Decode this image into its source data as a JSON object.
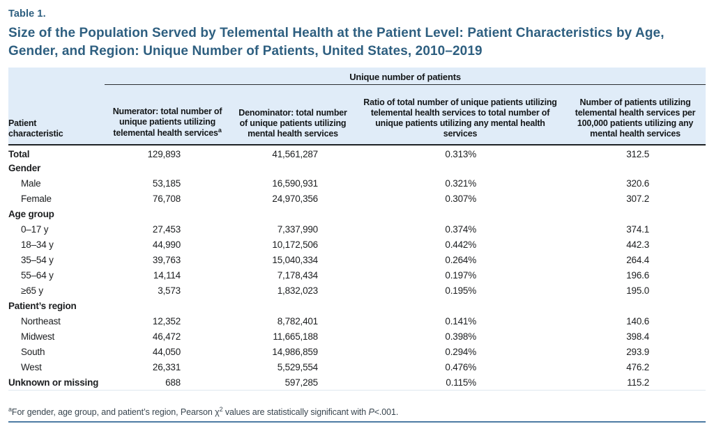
{
  "page": {
    "table_label": "Table 1.",
    "title": "Size of the Population Served by Telemental Health at the Patient Level: Patient Characteristics by Age, Gender, and Region: Unique Number of Patients, United States, 2010–2019"
  },
  "table": {
    "spanner": "Unique number of patients",
    "columns": {
      "c1": "Patient characteristic",
      "c2": {
        "text": "Numerator: total number of unique patients utilizing telemental health services",
        "sup": "a"
      },
      "c3": "Denominator: total number of unique patients utilizing mental health services",
      "c4": "Ratio of total number of unique patients utilizing telemental health services to total number of unique patients utilizing any mental health services",
      "c5": "Number of patients utilizing telemental health services per 100,000 patients utilizing any mental health services"
    },
    "rows": [
      {
        "label": "Total",
        "style": "bold",
        "values": [
          "129,893",
          "41,561,287",
          "0.313%",
          "312.5"
        ]
      },
      {
        "label": "Gender",
        "style": "bold",
        "values": [
          "",
          "",
          "",
          ""
        ]
      },
      {
        "label": "Male",
        "style": "indent",
        "values": [
          "53,185",
          "16,590,931",
          "0.321%",
          "320.6"
        ]
      },
      {
        "label": "Female",
        "style": "indent",
        "values": [
          "76,708",
          "24,970,356",
          "0.307%",
          "307.2"
        ]
      },
      {
        "label": "Age group",
        "style": "bold",
        "values": [
          "",
          "",
          "",
          ""
        ]
      },
      {
        "label": "0–17 y",
        "style": "indent",
        "values": [
          "27,453",
          "7,337,990",
          "0.374%",
          "374.1"
        ]
      },
      {
        "label": "18–34 y",
        "style": "indent",
        "values": [
          "44,990",
          "10,172,506",
          "0.442%",
          "442.3"
        ]
      },
      {
        "label": "35–54 y",
        "style": "indent",
        "values": [
          "39,763",
          "15,040,334",
          "0.264%",
          "264.4"
        ]
      },
      {
        "label": "55–64 y",
        "style": "indent",
        "values": [
          "14,114",
          "7,178,434",
          "0.197%",
          "196.6"
        ]
      },
      {
        "label": "≥65 y",
        "style": "indent",
        "values": [
          "3,573",
          "1,832,023",
          "0.195%",
          "195.0"
        ]
      },
      {
        "label": "Patient’s region",
        "style": "bold",
        "values": [
          "",
          "",
          "",
          ""
        ]
      },
      {
        "label": "Northeast",
        "style": "indent",
        "values": [
          "12,352",
          "8,782,401",
          "0.141%",
          "140.6"
        ]
      },
      {
        "label": "Midwest",
        "style": "indent",
        "values": [
          "46,472",
          "11,665,188",
          "0.398%",
          "398.4"
        ]
      },
      {
        "label": "South",
        "style": "indent",
        "values": [
          "44,050",
          "14,986,859",
          "0.294%",
          "293.9"
        ]
      },
      {
        "label": "West",
        "style": "indent",
        "values": [
          "26,331",
          "5,529,554",
          "0.476%",
          "476.2"
        ]
      },
      {
        "label": "Unknown or missing",
        "style": "bold",
        "values": [
          "688",
          "597,285",
          "0.115%",
          "115.2"
        ]
      }
    ]
  },
  "footnote": {
    "marker": "a",
    "part1": "For gender, age group, and patient’s region, Pearson χ",
    "chi_sup": "2",
    "part2": " values are statistically significant with ",
    "p": "P",
    "part3": "<.001."
  },
  "colors": {
    "title_blue": "#2e5f80",
    "header_band": "#e0ecf8",
    "header_rule": "#1e2225",
    "footnote_rule": "#4d7ba3"
  }
}
